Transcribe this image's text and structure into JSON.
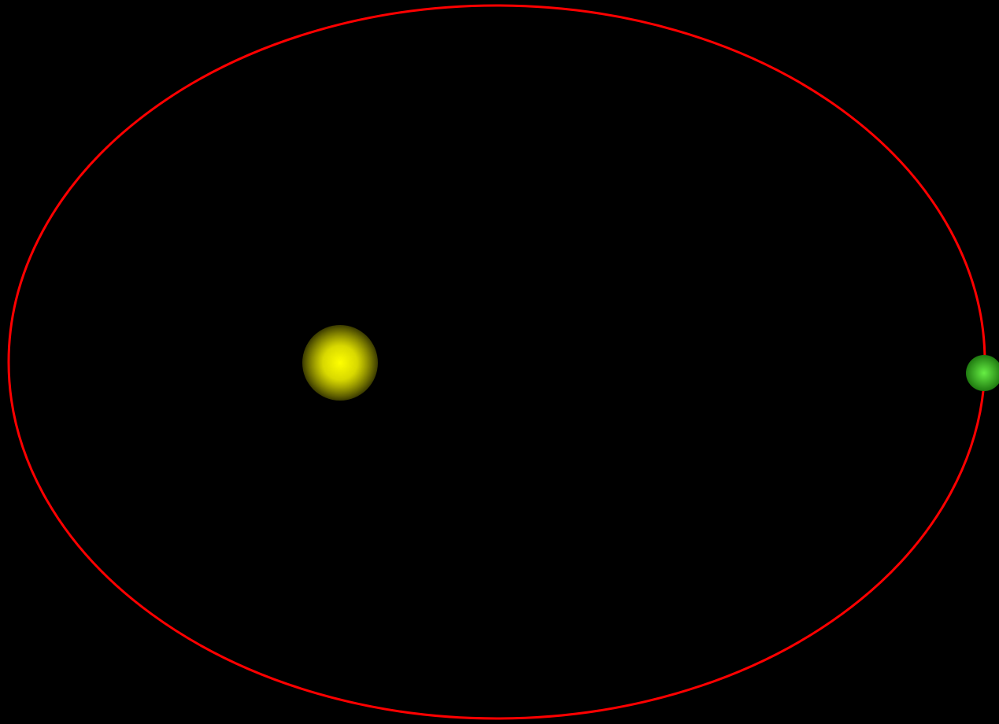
{
  "diagram": {
    "kind": "orbit-diagram",
    "background_color": "#000000",
    "orbit": {
      "color": "#ff0000"
    },
    "sun": {
      "icon": "star-icon",
      "color_core": "#ffff00",
      "color_edge": "#3a3a00"
    },
    "planet": {
      "icon": "planet-icon",
      "color_core": "#66ee44",
      "color_edge": "#1f7a10"
    }
  }
}
